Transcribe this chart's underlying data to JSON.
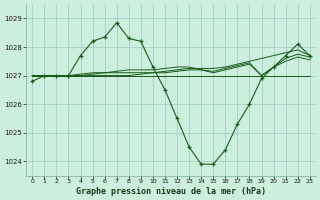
{
  "title": "Graphe pression niveau de la mer (hPa)",
  "background_color": "#cceedd",
  "grid_color": "#aacccc",
  "line_color": "#1a5c1a",
  "xlim": [
    -0.5,
    23.5
  ],
  "ylim": [
    1023.5,
    1029.5
  ],
  "yticks": [
    1024,
    1025,
    1026,
    1027,
    1028,
    1029
  ],
  "xticks": [
    0,
    1,
    2,
    3,
    4,
    5,
    6,
    7,
    8,
    9,
    10,
    11,
    12,
    13,
    14,
    15,
    16,
    17,
    18,
    19,
    20,
    21,
    22,
    23
  ],
  "hourly_series": [
    1026.8,
    1027.0,
    1027.0,
    1027.0,
    1027.7,
    1028.2,
    1028.35,
    1028.85,
    1028.3,
    1028.2,
    1027.3,
    1026.5,
    1025.5,
    1024.5,
    1023.9,
    1023.9,
    1024.4,
    1025.3,
    1026.0,
    1026.9,
    1027.3,
    1027.7,
    1028.1,
    1027.7
  ],
  "flat_lines": [
    [
      1027.0,
      1027.0,
      1027.0,
      1027.0,
      1027.0,
      1027.0,
      1027.0,
      1027.0,
      1027.0,
      1027.0,
      1027.0,
      1027.0,
      1027.0,
      1027.0,
      1027.0,
      1027.0,
      1027.0,
      1027.0,
      1027.0,
      1027.0,
      1027.0,
      1027.0,
      1027.0,
      1027.0
    ],
    [
      1027.0,
      1027.0,
      1027.0,
      1027.0,
      1027.0,
      1027.0,
      1027.0,
      1027.0,
      1027.0,
      1027.05,
      1027.1,
      1027.15,
      1027.2,
      1027.25,
      1027.25,
      1027.25,
      1027.3,
      1027.4,
      1027.5,
      1027.6,
      1027.7,
      1027.8,
      1027.9,
      1027.7
    ],
    [
      1027.0,
      1027.0,
      1027.0,
      1027.0,
      1027.0,
      1027.05,
      1027.1,
      1027.1,
      1027.1,
      1027.1,
      1027.1,
      1027.1,
      1027.15,
      1027.2,
      1027.2,
      1027.15,
      1027.25,
      1027.35,
      1027.45,
      1027.0,
      1027.3,
      1027.5,
      1027.65,
      1027.55
    ],
    [
      1027.0,
      1027.0,
      1027.0,
      1027.0,
      1027.05,
      1027.1,
      1027.1,
      1027.15,
      1027.2,
      1027.2,
      1027.2,
      1027.25,
      1027.3,
      1027.3,
      1027.2,
      1027.1,
      1027.2,
      1027.3,
      1027.4,
      1027.0,
      1027.3,
      1027.6,
      1027.75,
      1027.65
    ]
  ]
}
